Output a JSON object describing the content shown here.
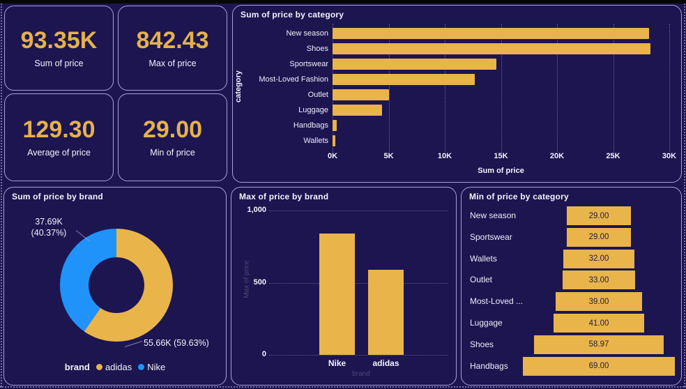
{
  "theme": {
    "background": "#1C1550",
    "panel_border": "#A9A1D9",
    "gold": "#E9B44A",
    "blue": "#2093FB",
    "text": "#F4F2FC",
    "dim_text": "#4E4973"
  },
  "kpis": [
    {
      "value": "93.35K",
      "label": "Sum of price"
    },
    {
      "value": "842.43",
      "label": "Max of price"
    },
    {
      "value": "129.30",
      "label": "Average of price"
    },
    {
      "value": "29.00",
      "label": "Min of price"
    }
  ],
  "chart_data": [
    {
      "id": "sum_by_category",
      "type": "bar",
      "orientation": "horizontal",
      "title": "Sum of price by category",
      "xlabel": "Sum of price",
      "ylabel": "category",
      "categories": [
        "New season",
        "Shoes",
        "Sportswear",
        "Most-Loved Fashion",
        "Outlet",
        "Luggage",
        "Handbags",
        "Wallets"
      ],
      "values": [
        28200,
        28350,
        14600,
        12700,
        5000,
        4400,
        350,
        220
      ],
      "xlim": [
        0,
        30000
      ],
      "x_tick_labels": [
        "0K",
        "5K",
        "10K",
        "15K",
        "20K",
        "25K",
        "30K"
      ],
      "grid": "vertical-dotted",
      "bar_color": "#E9B44A"
    },
    {
      "id": "sum_by_brand",
      "type": "pie",
      "subtype": "donut",
      "title": "Sum of price by brand",
      "legend_title": "brand",
      "legend_position": "bottom",
      "slices": [
        {
          "name": "adidas",
          "value": 55660,
          "pct": 59.63,
          "color": "#E9B44A",
          "callout": "55.66K (59.63%)"
        },
        {
          "name": "Nike",
          "value": 37690,
          "pct": 40.37,
          "color": "#2093FB",
          "callout_line1": "37.69K",
          "callout_line2": "(40.37%)"
        }
      ]
    },
    {
      "id": "max_by_brand",
      "type": "bar",
      "orientation": "vertical",
      "title": "Max of price by brand",
      "xlabel": "brand",
      "ylabel": "Max of price",
      "categories": [
        "Nike",
        "adidas"
      ],
      "values": [
        842.43,
        590
      ],
      "ylim": [
        0,
        1000
      ],
      "y_tick_labels": [
        "0",
        "500",
        "1,000"
      ],
      "grid": "horizontal-dotted",
      "bar_color": "#E9B44A"
    },
    {
      "id": "min_by_category",
      "type": "funnel",
      "title": "Min of price by category",
      "categories": [
        "New season",
        "Sportswear",
        "Wallets",
        "Outlet",
        "Most-Loved ...",
        "Luggage",
        "Shoes",
        "Handbags"
      ],
      "values": [
        29,
        29,
        32,
        33,
        39,
        41,
        58.97,
        69
      ],
      "value_labels": [
        "29.00",
        "29.00",
        "32.00",
        "33.00",
        "39.00",
        "41.00",
        "58.97",
        "69.00"
      ],
      "bar_color": "#E9B44A"
    }
  ]
}
